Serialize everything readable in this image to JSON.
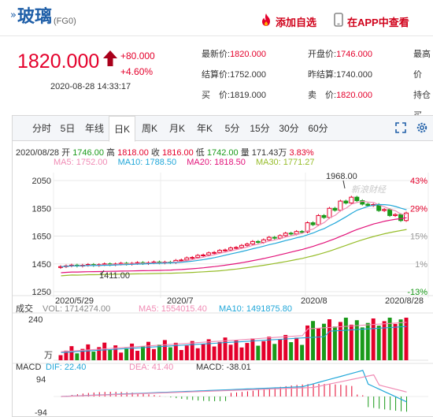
{
  "header": {
    "title": "玻璃",
    "code": "(FG0)",
    "add_favorite": "添加自选",
    "view_in_app": "在APP中查看"
  },
  "quote": {
    "price": "1820.000",
    "change": "+80.000",
    "change_pct": "+4.60%",
    "datetime": "2020-08-28 14:33:17",
    "col1": [
      {
        "k": "最新价:",
        "v": "1820.000"
      },
      {
        "k": "结算价:",
        "v": "1752.000"
      },
      {
        "k": "买　价:",
        "v": "1819.000"
      }
    ],
    "col2": [
      {
        "k": "开盘价:",
        "v": "1746.000"
      },
      {
        "k": "昨结算:",
        "v": "1740.000"
      },
      {
        "k": "卖　价:",
        "v": "1820.000"
      }
    ],
    "col3": [
      {
        "k": "最高价",
        "v": ""
      },
      {
        "k": "持仓",
        "v": ""
      },
      {
        "k": "买",
        "v": ""
      }
    ]
  },
  "tabs": [
    "分时",
    "5日",
    "年线",
    "日K",
    "周K",
    "月K",
    "年K",
    "5分",
    "15分",
    "30分",
    "60分"
  ],
  "active_tab": "日K",
  "ohlc": {
    "date": "2020/08/28",
    "open_k": "开",
    "open": "1746.00",
    "high_k": "高",
    "high": "1818.00",
    "close_k": "收",
    "close": "1816.00",
    "low_k": "低",
    "low": "1742.00",
    "vol_k": "量",
    "vol": "171.43万",
    "pct": "3.83%"
  },
  "ma": {
    "ma5": "MA5: 1752.00",
    "ma10": "MA10: 1788.50",
    "ma20": "MA20: 1818.50",
    "ma30": "MA30: 1771.27"
  },
  "colors": {
    "up": "#e4002b",
    "down": "#1a9a1a",
    "ma5": "#f08cb5",
    "ma10": "#21a7d9",
    "ma20": "#e2137a",
    "ma30": "#97bd2a"
  },
  "kline": {
    "y_ticks": [
      "2050",
      "1850",
      "1650",
      "1450",
      "1250"
    ],
    "pct_ticks": [
      "43%",
      "29%",
      "15%",
      "1%",
      "-13%"
    ],
    "x_labels": [
      "2020/5/29",
      "2020/7",
      "2020/8",
      "2020/8/28"
    ],
    "max_label": "1968.00",
    "min_label": "1411.00",
    "watermark": "新浪财经"
  },
  "volume": {
    "title": "成交",
    "vol": "VOL: 1714274.00",
    "ma5": "MA5: 1554015.40",
    "ma10": "MA10: 1491875.80",
    "top_tick": "240",
    "unit": "万"
  },
  "macd": {
    "title": "MACD",
    "dif": "DIF: 22.40",
    "dea": "DEA: 41.40",
    "macd": "MACD: -38.01",
    "top_tick": "94",
    "bottom_tick": "-94"
  }
}
